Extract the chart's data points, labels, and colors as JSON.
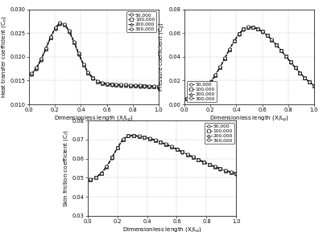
{
  "legend_labels": [
    "50,000",
    "100,000",
    "200,000",
    "300,000"
  ],
  "markers": [
    "o",
    "s",
    "^",
    "o"
  ],
  "x_label": "Dimensionless length (X/L$_p$)",
  "plot1": {
    "ylabel": "Heat transfer coefficient (C$_h$)",
    "ylim": [
      0.01,
      0.03
    ],
    "yticks": [
      0.01,
      0.015,
      0.02,
      0.025,
      0.03
    ],
    "xlim": [
      0.0,
      1.0
    ],
    "xticks": [
      0.0,
      0.2,
      0.4,
      0.6,
      0.8,
      1.0
    ],
    "legend_loc": "upper right"
  },
  "plot2": {
    "ylabel": "Pressure coefficient (C$_p$)",
    "ylim": [
      0.0,
      0.08
    ],
    "yticks": [
      0.0,
      0.02,
      0.04,
      0.06,
      0.08
    ],
    "xlim": [
      0.0,
      1.0
    ],
    "xticks": [
      0.0,
      0.2,
      0.4,
      0.6,
      0.8,
      1.0
    ],
    "legend_loc": "lower left"
  },
  "plot3": {
    "ylabel": "Skin friction coefficient (C$_f$)",
    "ylim": [
      0.03,
      0.08
    ],
    "yticks": [
      0.03,
      0.04,
      0.05,
      0.06,
      0.07,
      0.08
    ],
    "xlim": [
      0.0,
      1.0
    ],
    "xticks": [
      0.0,
      0.2,
      0.4,
      0.6,
      0.8,
      1.0
    ],
    "legend_loc": "upper right"
  },
  "line_color": "#111111",
  "grid_color": "#999999",
  "marker_size": 2.5,
  "linewidth": 0.7,
  "font_size": 5.0,
  "tick_font_size": 4.8,
  "legend_font_size": 4.2
}
